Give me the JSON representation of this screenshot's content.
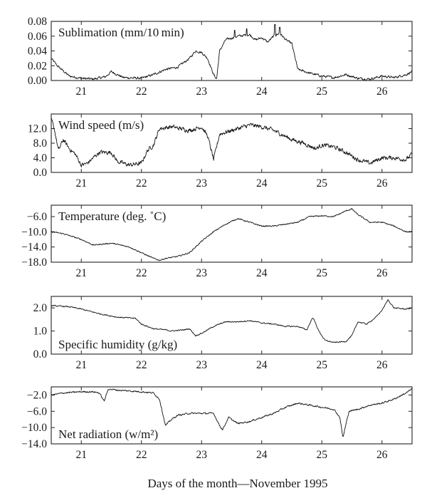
{
  "x_axis_title": "Days of the month—November 1995",
  "chart_data": [
    {
      "type": "line",
      "name": "Sublimation",
      "label": "Sublimation (mm/10 min)",
      "label_pos": "top-left",
      "xlim": [
        20.5,
        26.5
      ],
      "ylim": [
        0.0,
        0.08
      ],
      "yticks": [
        0.0,
        0.02,
        0.04,
        0.06,
        0.08
      ],
      "ytick_labels": [
        "0.00",
        "0.02",
        "0.04",
        "0.06",
        "0.08"
      ],
      "xticks": [
        21,
        22,
        23,
        24,
        25,
        26
      ],
      "xtick_labels": [
        "21",
        "22",
        "23",
        "24",
        "25",
        "26"
      ],
      "noise": 0.0025,
      "x": [
        20.5,
        20.6,
        20.8,
        21.0,
        21.2,
        21.4,
        21.5,
        21.7,
        22.0,
        22.2,
        22.4,
        22.6,
        22.8,
        22.9,
        23.0,
        23.1,
        23.2,
        23.25,
        23.3,
        23.4,
        23.6,
        23.8,
        23.9,
        24.0,
        24.1,
        24.2,
        24.3,
        24.4,
        24.5,
        24.6,
        24.8,
        25.0,
        25.2,
        25.4,
        25.6,
        25.8,
        26.0,
        26.2,
        26.4,
        26.5
      ],
      "y": [
        0.03,
        0.02,
        0.006,
        0.003,
        0.002,
        0.005,
        0.012,
        0.004,
        0.003,
        0.008,
        0.015,
        0.018,
        0.03,
        0.04,
        0.038,
        0.03,
        0.008,
        0.002,
        0.04,
        0.055,
        0.06,
        0.062,
        0.055,
        0.058,
        0.052,
        0.06,
        0.064,
        0.055,
        0.05,
        0.015,
        0.01,
        0.006,
        0.004,
        0.008,
        0.003,
        0.002,
        0.006,
        0.004,
        0.008,
        0.012
      ],
      "spikes": [
        [
          23.75,
          0.07
        ],
        [
          24.22,
          0.076
        ],
        [
          24.3,
          0.072
        ],
        [
          23.55,
          0.068
        ]
      ]
    },
    {
      "type": "line",
      "name": "Wind speed",
      "label": "Wind speed (m/s)",
      "label_pos": "top-left",
      "xlim": [
        20.5,
        26.5
      ],
      "ylim": [
        0.0,
        16.0
      ],
      "yticks": [
        0.0,
        4.0,
        8.0,
        12.0
      ],
      "ytick_labels": [
        "0.0",
        "4.0",
        "8.0",
        "12.0"
      ],
      "xticks": [
        21,
        22,
        23,
        24,
        25,
        26
      ],
      "xtick_labels": [
        "21",
        "22",
        "23",
        "24",
        "25",
        "26"
      ],
      "noise": 0.9,
      "x": [
        20.5,
        20.55,
        20.62,
        20.7,
        20.8,
        20.9,
        21.0,
        21.1,
        21.3,
        21.5,
        21.6,
        21.8,
        22.0,
        22.1,
        22.2,
        22.3,
        22.5,
        22.8,
        23.0,
        23.1,
        23.2,
        23.3,
        23.5,
        23.8,
        24.0,
        24.2,
        24.5,
        24.7,
        24.9,
        25.0,
        25.2,
        25.4,
        25.6,
        25.8,
        26.0,
        26.2,
        26.4,
        26.5
      ],
      "y": [
        14.5,
        12.0,
        6.0,
        9.0,
        6.5,
        5.0,
        2.0,
        2.5,
        5.5,
        5.5,
        3.0,
        2.0,
        2.5,
        6.0,
        7.5,
        12.0,
        12.5,
        11.5,
        12.5,
        10.0,
        3.5,
        10.5,
        11.5,
        13.0,
        12.5,
        11.5,
        9.0,
        8.0,
        6.5,
        7.5,
        7.0,
        5.5,
        3.5,
        2.5,
        4.0,
        4.0,
        3.5,
        5.0
      ]
    },
    {
      "type": "line",
      "name": "Temperature",
      "label": "Temperature (deg. ˚C)",
      "label_pos": "top-left",
      "xlim": [
        20.5,
        26.5
      ],
      "ylim": [
        -18.0,
        -3.0
      ],
      "yticks": [
        -18.0,
        -14.0,
        -10.0,
        -6.0
      ],
      "ytick_labels": [
        "−18.0",
        "−14.0",
        "−10.0",
        "−6.0"
      ],
      "xticks": [
        21,
        22,
        23,
        24,
        25,
        26
      ],
      "xtick_labels": [
        "21",
        "22",
        "23",
        "24",
        "25",
        "26"
      ],
      "noise": 0.25,
      "x": [
        20.5,
        20.7,
        21.0,
        21.2,
        21.5,
        21.8,
        22.0,
        22.2,
        22.3,
        22.4,
        22.6,
        22.8,
        23.0,
        23.2,
        23.4,
        23.6,
        23.8,
        24.0,
        24.2,
        24.4,
        24.6,
        24.8,
        25.0,
        25.2,
        25.4,
        25.5,
        25.6,
        25.8,
        26.0,
        26.2,
        26.4,
        26.5
      ],
      "y": [
        -10.0,
        -10.5,
        -12.0,
        -13.5,
        -13.0,
        -14.0,
        -15.5,
        -17.0,
        -17.5,
        -17.0,
        -16.5,
        -15.5,
        -12.5,
        -10.0,
        -8.0,
        -6.5,
        -7.5,
        -8.5,
        -8.5,
        -8.0,
        -7.5,
        -6.0,
        -5.8,
        -6.0,
        -4.5,
        -4.0,
        -5.5,
        -7.5,
        -7.5,
        -8.5,
        -10.0,
        -10.0
      ]
    },
    {
      "type": "line",
      "name": "Specific humidity",
      "label": "Specific humidity (g/kg)",
      "label_pos": "bottom-left",
      "xlim": [
        20.5,
        26.5
      ],
      "ylim": [
        0.0,
        2.5
      ],
      "yticks": [
        0.0,
        1.0,
        2.0
      ],
      "ytick_labels": [
        "0.0",
        "1.0",
        "2.0"
      ],
      "xticks": [
        21,
        22,
        23,
        24,
        25,
        26
      ],
      "xtick_labels": [
        "21",
        "22",
        "23",
        "24",
        "25",
        "26"
      ],
      "noise": 0.04,
      "x": [
        20.5,
        20.8,
        21.0,
        21.3,
        21.6,
        21.9,
        22.0,
        22.2,
        22.4,
        22.5,
        22.7,
        22.8,
        22.9,
        23.0,
        23.2,
        23.4,
        23.6,
        23.8,
        24.0,
        24.2,
        24.4,
        24.6,
        24.75,
        24.85,
        24.95,
        25.05,
        25.2,
        25.4,
        25.5,
        25.6,
        25.75,
        25.9,
        26.0,
        26.1,
        26.2,
        26.4,
        26.5
      ],
      "y": [
        2.1,
        2.05,
        1.95,
        1.75,
        1.6,
        1.55,
        1.3,
        1.1,
        1.05,
        1.0,
        1.05,
        1.1,
        0.8,
        0.9,
        1.2,
        1.4,
        1.4,
        1.45,
        1.35,
        1.3,
        1.2,
        1.2,
        1.05,
        1.6,
        1.0,
        0.6,
        0.5,
        0.55,
        0.8,
        1.4,
        1.3,
        1.6,
        1.9,
        2.35,
        2.0,
        1.95,
        2.0
      ]
    },
    {
      "type": "line",
      "name": "Net radiation",
      "label": "Net radiation (w/m²)",
      "label_pos": "bottom-left",
      "xlim": [
        20.5,
        26.5
      ],
      "ylim": [
        -14.0,
        0.0
      ],
      "yticks": [
        -14.0,
        -10.0,
        -6.0,
        -2.0
      ],
      "ytick_labels": [
        "−14.0",
        "−10.0",
        "−6.0",
        "−2.0"
      ],
      "xticks": [
        21,
        22,
        23,
        24,
        25,
        26
      ],
      "xtick_labels": [
        "21",
        "22",
        "23",
        "24",
        "25",
        "26"
      ],
      "noise": 0.3,
      "x": [
        20.5,
        20.7,
        21.0,
        21.2,
        21.3,
        21.38,
        21.45,
        21.6,
        21.8,
        22.0,
        22.2,
        22.3,
        22.4,
        22.5,
        22.6,
        22.8,
        23.0,
        23.2,
        23.3,
        23.35,
        23.45,
        23.6,
        23.8,
        24.0,
        24.2,
        24.4,
        24.6,
        24.8,
        25.0,
        25.2,
        25.3,
        25.35,
        25.45,
        25.6,
        25.8,
        26.0,
        26.2,
        26.4,
        26.5
      ],
      "y": [
        -2.0,
        -1.5,
        -1.2,
        -1.2,
        -1.5,
        -3.5,
        -0.5,
        -0.8,
        -1.0,
        -1.2,
        -1.5,
        -3.0,
        -9.5,
        -8.0,
        -7.0,
        -6.5,
        -6.5,
        -6.5,
        -9.5,
        -10.5,
        -7.5,
        -9.0,
        -8.5,
        -7.5,
        -6.5,
        -5.0,
        -4.0,
        -4.5,
        -5.0,
        -5.5,
        -7.5,
        -12.5,
        -6.0,
        -5.5,
        -4.5,
        -4.0,
        -3.0,
        -1.5,
        -0.5
      ]
    }
  ]
}
